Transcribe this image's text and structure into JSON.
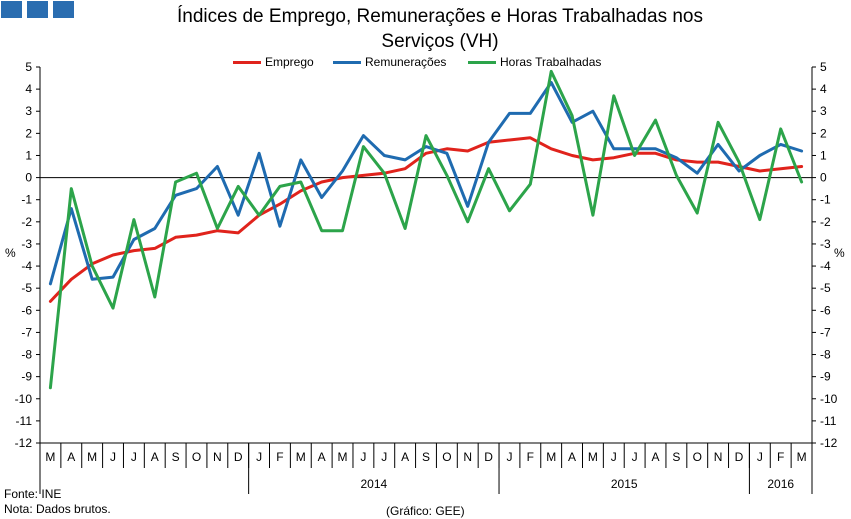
{
  "title_line1": "Índices de Emprego, Remunerações e Horas Trabalhadas nos",
  "title_line2": "Serviços (VH)",
  "footer": {
    "source": "Fonte: INE",
    "note": "Nota: Dados brutos.",
    "credit": "(Gráfico: GEE)"
  },
  "chart_data": {
    "type": "line",
    "title": "Índices de Emprego, Remunerações e Horas Trabalhadas nos Serviços (VH)",
    "ylabel_left": "%",
    "ylabel_right": "%",
    "ylim": [
      -12,
      5
    ],
    "yticks": [
      5,
      4,
      3,
      2,
      1,
      0,
      -1,
      -2,
      -3,
      -4,
      -5,
      -6,
      -7,
      -8,
      -9,
      -10,
      -11,
      -12
    ],
    "legend_position": "top-center",
    "categories": [
      "M",
      "A",
      "M",
      "J",
      "J",
      "A",
      "S",
      "O",
      "N",
      "D",
      "J",
      "F",
      "M",
      "A",
      "M",
      "J",
      "J",
      "A",
      "S",
      "O",
      "N",
      "D",
      "J",
      "F",
      "M",
      "A",
      "M",
      "J",
      "J",
      "A",
      "S",
      "O",
      "N",
      "D",
      "J",
      "F",
      "M"
    ],
    "year_labels": [
      {
        "label": "2014",
        "start": 10,
        "end": 21
      },
      {
        "label": "2015",
        "start": 22,
        "end": 33
      },
      {
        "label": "2016",
        "start": 34,
        "end": 36
      }
    ],
    "series": [
      {
        "name": "Emprego",
        "color": "#e0231c",
        "values": [
          -5.6,
          -4.6,
          -3.9,
          -3.5,
          -3.3,
          -3.2,
          -2.7,
          -2.6,
          -2.4,
          -2.5,
          -1.7,
          -1.2,
          -0.6,
          -0.2,
          0.0,
          0.1,
          0.2,
          0.4,
          1.1,
          1.3,
          1.2,
          1.6,
          1.7,
          1.8,
          1.3,
          1.0,
          0.8,
          0.9,
          1.1,
          1.1,
          0.8,
          0.7,
          0.7,
          0.5,
          0.3,
          0.4,
          0.5
        ]
      },
      {
        "name": "Remunerações",
        "color": "#1f6bb0",
        "values": [
          -4.8,
          -1.4,
          -4.6,
          -4.5,
          -2.8,
          -2.3,
          -0.8,
          -0.5,
          0.5,
          -1.7,
          1.1,
          -2.2,
          0.8,
          -0.9,
          0.3,
          1.9,
          1.0,
          0.8,
          1.4,
          1.1,
          -1.3,
          1.6,
          2.9,
          2.9,
          4.3,
          2.5,
          3.0,
          1.3,
          1.3,
          1.3,
          0.9,
          0.2,
          1.5,
          0.3,
          1.0,
          1.5,
          1.2
        ]
      },
      {
        "name": "Horas Trabalhadas",
        "color": "#2ca44a",
        "values": [
          -9.5,
          -0.5,
          -4.0,
          -5.9,
          -1.9,
          -5.4,
          -0.2,
          0.2,
          -2.3,
          -0.4,
          -1.7,
          -0.4,
          -0.2,
          -2.4,
          -2.4,
          1.4,
          0.2,
          -2.3,
          1.9,
          0.1,
          -2.0,
          0.4,
          -1.5,
          -0.3,
          4.8,
          2.8,
          -1.7,
          3.7,
          1.0,
          2.6,
          0.1,
          -1.6,
          2.5,
          0.7,
          -1.9,
          2.2,
          -0.2
        ]
      }
    ]
  }
}
